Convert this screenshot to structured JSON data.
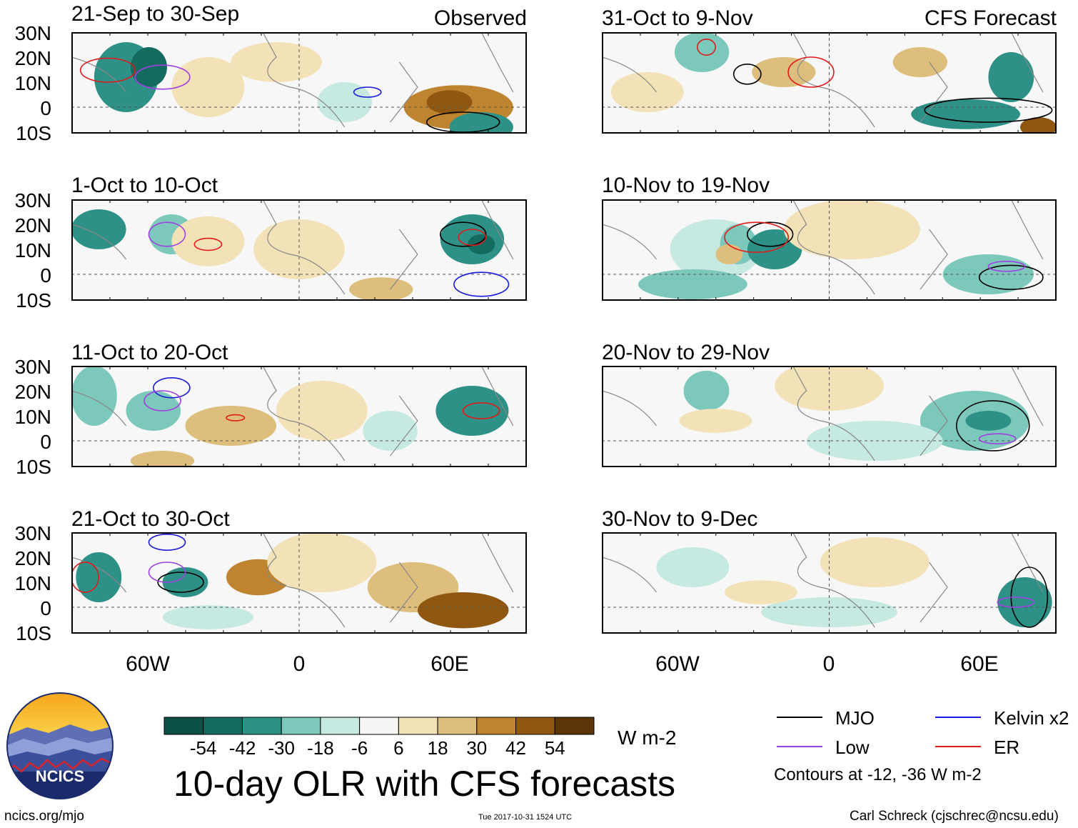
{
  "chart_data": {
    "type": "heatmap",
    "title": "10-day OLR with CFS forecasts",
    "units": "W m-2",
    "observed_label": "Observed",
    "forecast_label": "CFS Forecast",
    "lat_ticks": [
      "30N",
      "20N",
      "10N",
      "0",
      "10S"
    ],
    "lon_ticks": [
      "60W",
      "0",
      "60E"
    ],
    "colorbar": {
      "levels": [
        "-54",
        "-42",
        "-30",
        "-18",
        "-6",
        "6",
        "18",
        "30",
        "42",
        "54"
      ],
      "colors": [
        "#0b4f45",
        "#136b60",
        "#2e9187",
        "#7cc8bb",
        "#c6e9e1",
        "#f5f5f5",
        "#f3e2b8",
        "#ddbe7c",
        "#bf842f",
        "#8f5710",
        "#5c3507"
      ]
    },
    "legend": {
      "items": [
        {
          "name": "MJO",
          "color": "#000000"
        },
        {
          "name": "Kelvin x2",
          "color": "#1a1adb"
        },
        {
          "name": "Low",
          "color": "#a040e0"
        },
        {
          "name": "ER",
          "color": "#e01a1a"
        }
      ],
      "note": "Contours at -12, -36 W m-2"
    },
    "panels": [
      {
        "period": "21-Sep to 30-Sep",
        "source": "Observed"
      },
      {
        "period": "1-Oct to 10-Oct",
        "source": "Observed"
      },
      {
        "period": "11-Oct to 20-Oct",
        "source": "Observed"
      },
      {
        "period": "21-Oct to 30-Oct",
        "source": "Observed"
      },
      {
        "period": "31-Oct to 9-Nov",
        "source": "CFS Forecast"
      },
      {
        "period": "10-Nov to 19-Nov",
        "source": "CFS Forecast"
      },
      {
        "period": "20-Nov to 29-Nov",
        "source": "CFS Forecast"
      },
      {
        "period": "30-Nov to 9-Dec",
        "source": "CFS Forecast"
      }
    ]
  },
  "logo": {
    "text": "NCICS"
  },
  "footer": {
    "left": "ncics.org/mjo",
    "center": "Tue 2017-10-31 1524 UTC",
    "right": "Carl Schreck (cjschrec@ncsu.edu)"
  }
}
